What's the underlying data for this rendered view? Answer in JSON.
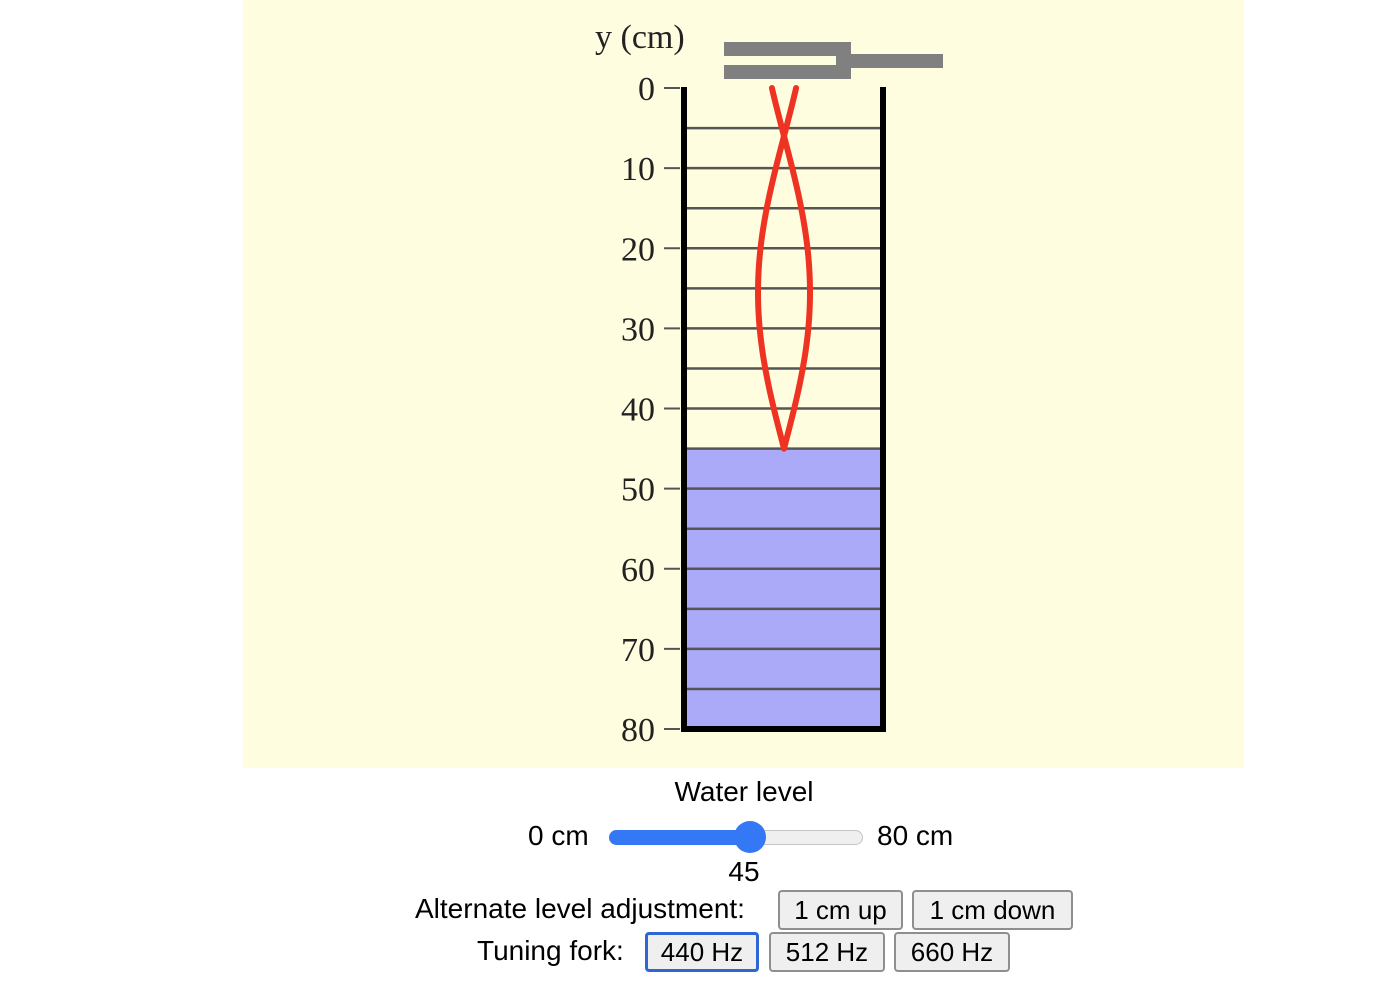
{
  "simulation": {
    "y_axis_label": "y (cm)",
    "tick_labels": [
      "0",
      "10",
      "20",
      "30",
      "40",
      "50",
      "60",
      "70",
      "80"
    ],
    "tube_depth_cm": 80,
    "water_level_cm": 45,
    "water_color": "#aaaaf8",
    "wave_color": "#ee3322",
    "background_color": "#fefde0"
  },
  "controls": {
    "water_level_title": "Water level",
    "slider_min_label": "0 cm",
    "slider_max_label": "80 cm",
    "slider_min": 0,
    "slider_max": 80,
    "slider_value": "45",
    "slider_fraction": 0.5625,
    "accent_color": "#3478f6",
    "alt_adjust_label": "Alternate level adjustment:",
    "up_button": "1 cm up",
    "down_button": "1 cm down",
    "fork_label": "Tuning fork:",
    "fork_buttons": [
      "440 Hz",
      "512 Hz",
      "660 Hz"
    ],
    "selected_fork": "440 Hz"
  }
}
